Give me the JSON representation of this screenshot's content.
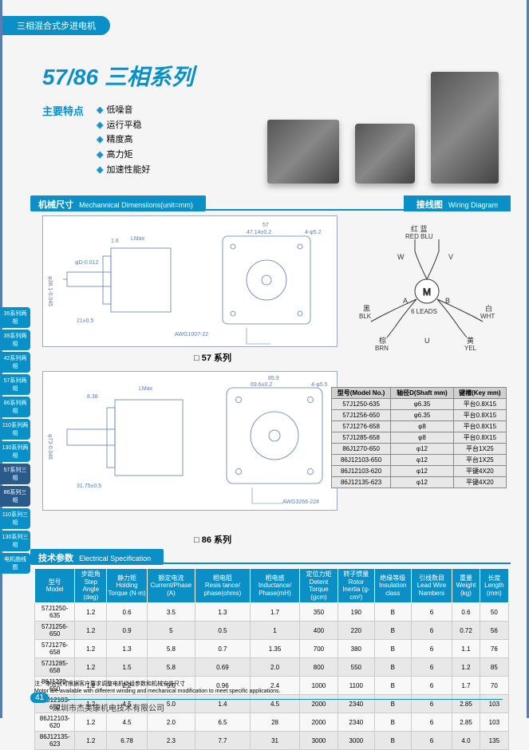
{
  "top_tab": "三相混合式步进电机",
  "title": "57/86 三相系列",
  "features_label": "主要特点",
  "features": [
    "低噪音",
    "运行平稳",
    "精度高",
    "高力矩",
    "加速性能好"
  ],
  "section1": {
    "cn": "机械尺寸",
    "en": "Mechannical Dimensiions(unit=mm)"
  },
  "section1b": {
    "cn": "接线图",
    "en": "Wiring Diagram"
  },
  "series_57": "□ 57 系列",
  "series_86": "□ 86 系列",
  "section2": {
    "cn": "技术参数",
    "en": "Electrical  Specification"
  },
  "wiring": {
    "labels": {
      "red": "红",
      "blue": "蓝",
      "red_en": "RED",
      "blue_en": "BLU",
      "w": "W",
      "v": "V",
      "a": "A",
      "b": "B",
      "u": "U",
      "blk": "黑",
      "blk_en": "BLK",
      "brn": "棕",
      "brn_en": "BRN",
      "wht": "白",
      "wht_en": "WHT",
      "yel": "黄",
      "yel_en": "YEL",
      "center": "M",
      "leads": "6 LEADS"
    }
  },
  "shaft_table": {
    "headers": [
      "型号(Model No.)",
      "轴径D(Shaft mm)",
      "键槽(Key mm)"
    ],
    "rows": [
      [
        "57J1250-635",
        "φ6.35",
        "平台0.8X15"
      ],
      [
        "57J1256-650",
        "φ6.35",
        "平台0.8X15"
      ],
      [
        "57J1276-658",
        "φ8",
        "平台0.8X15"
      ],
      [
        "57J1285-658",
        "φ8",
        "平台0.8X15"
      ],
      [
        "86J1270-650",
        "φ12",
        "平台1X25"
      ],
      [
        "86J12103-650",
        "φ12",
        "平台1X25"
      ],
      [
        "86J12103-620",
        "φ12",
        "平键4X20"
      ],
      [
        "86J12135-623",
        "φ12",
        "平键4X20"
      ]
    ]
  },
  "spec_table": {
    "headers": [
      {
        "cn": "型号",
        "en": "Model"
      },
      {
        "cn": "步距角",
        "en": "Step Angle (deg)"
      },
      {
        "cn": "静力矩",
        "en": "Holding Torque (N·m)"
      },
      {
        "cn": "额定电流",
        "en": "Current/Phase (A)"
      },
      {
        "cn": "相电阻",
        "en": "Resis tance/ phase(ohms)"
      },
      {
        "cn": "相电感",
        "en": "Inductance/ Phase(mH)"
      },
      {
        "cn": "定位力矩",
        "en": "Detent Torque (gcm)"
      },
      {
        "cn": "转子惯量",
        "en": "Rotor Inertia (g-cm²)"
      },
      {
        "cn": "绝缘等级",
        "en": "Insulation class"
      },
      {
        "cn": "引线数目",
        "en": "Lead Wire Nambers"
      },
      {
        "cn": "重量",
        "en": "Weight (kg)"
      },
      {
        "cn": "长度",
        "en": "Length (mm)"
      }
    ],
    "rows": [
      [
        "57J1250-635",
        "1.2",
        "0.6",
        "3.5",
        "1.3",
        "1.7",
        "350",
        "190",
        "B",
        "6",
        "0.6",
        "50"
      ],
      [
        "57J1256-650",
        "1.2",
        "0.9",
        "5",
        "0.5",
        "1",
        "400",
        "220",
        "B",
        "6",
        "0.72",
        "56"
      ],
      [
        "57J1276-658",
        "1.2",
        "1.3",
        "5.8",
        "0.7",
        "1.35",
        "700",
        "380",
        "B",
        "6",
        "1.1",
        "76"
      ],
      [
        "57J1285-658",
        "1.2",
        "1.5",
        "5.8",
        "0.69",
        "2.0",
        "800",
        "550",
        "B",
        "6",
        "1.2",
        "85"
      ],
      [
        "86J1270-650",
        "1.2",
        "2.2",
        "5.0",
        "0.96",
        "2.4",
        "1000",
        "1100",
        "B",
        "6",
        "1.7",
        "70"
      ],
      [
        "86J12103-650",
        "1.2",
        "4.5",
        "5.0",
        "1.4",
        "4.5",
        "2000",
        "2340",
        "B",
        "6",
        "2.85",
        "103"
      ],
      [
        "86J12103-620",
        "1.2",
        "4.5",
        "2.0",
        "6.5",
        "28",
        "2000",
        "2340",
        "B",
        "6",
        "2.85",
        "103"
      ],
      [
        "86J12135-623",
        "1.2",
        "6.78",
        "2.3",
        "7.7",
        "31",
        "3000",
        "3000",
        "B",
        "6",
        "4.0",
        "135"
      ]
    ]
  },
  "side_tabs": [
    "35系列两相",
    "39系列两相",
    "42系列两相",
    "57系列两相",
    "86系列两相",
    "110系列两相",
    "130系列两相",
    "57系列三相",
    "86系列三相",
    "110系列三相",
    "130系列三相",
    "电机曲线图"
  ],
  "side_tab_highlight": [
    7,
    8
  ],
  "note_cn": "注：本公司可根据客户要求调整电机绕组参数和机械安装尺寸",
  "note_en": "Motor are available with different winding and mechanical modification to meet specific applications.",
  "page_num": "41",
  "company": "深圳市杰美康机电技术有限公司",
  "dimensions_57": {
    "lmax": "LMax",
    "flange": "57",
    "holes": "47.14±0.2",
    "chamfer": "4-φ5.2",
    "ht": "47.14±0.2",
    "shaft_ext": "21±0.5",
    "awg": "AWG1007-22",
    "lead": "450±20",
    "step": "1.6",
    "pilot_d": "φ38.1-0.045",
    "shaft_d": "φD-0.012",
    "pilot_l": "1.5"
  },
  "dimensions_86": {
    "lmax": "LMax",
    "flange": "85.9",
    "holes": "69.6±0.2",
    "chamfer": "4-φ5.5",
    "shaft_ext": "31.75±0.5",
    "step": "8.38",
    "awg": "AWG3266-22#",
    "pilot_d": "φ73-0.046",
    "shaft_d": "φD-0.012",
    "pilot_l": "1.52"
  },
  "colors": {
    "primary": "#0a8fc7",
    "border": "#5a7db0"
  }
}
